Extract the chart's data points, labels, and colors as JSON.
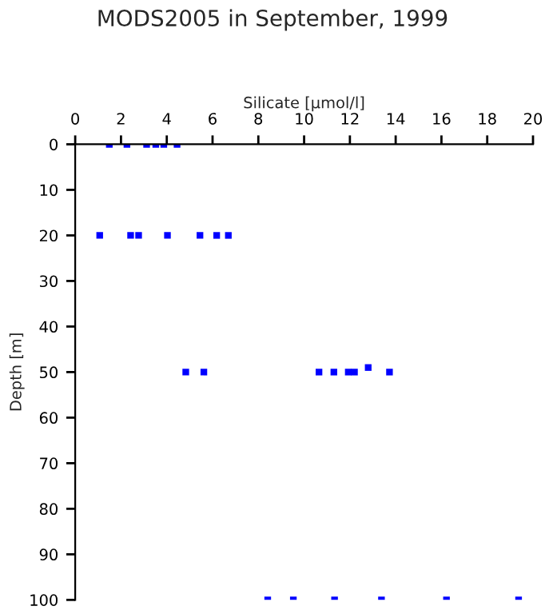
{
  "chart_data": {
    "type": "scatter",
    "title": "MODS2005 in September, 1999",
    "xlabel": "Silicate [µmol/l]",
    "ylabel": "Depth [m]",
    "series": [
      {
        "color": "#0000ff",
        "x": [
          1.49,
          2.26,
          3.12,
          3.52,
          3.87,
          4.45,
          1.07,
          2.42,
          2.77,
          4.03,
          5.45,
          6.18,
          6.69,
          4.83,
          5.62,
          10.65,
          11.3,
          11.93,
          12.2,
          12.8,
          13.73,
          8.41,
          9.53,
          11.33,
          13.38,
          16.22,
          19.37
        ],
        "values": [
          0,
          0,
          0,
          0,
          0,
          0,
          20,
          20,
          20,
          20,
          20,
          20,
          20,
          50,
          50,
          50,
          50,
          50,
          50,
          49,
          50,
          100,
          100,
          100,
          100,
          100,
          100
        ]
      }
    ],
    "xlim": [
      0,
      20
    ],
    "xticks": [
      0,
      2,
      4,
      6,
      8,
      10,
      12,
      14,
      16,
      18,
      20
    ],
    "ylim": [
      100,
      0
    ],
    "yticks": [
      0,
      10,
      20,
      30,
      40,
      50,
      60,
      70,
      80,
      90,
      100
    ],
    "marker": "square",
    "grid": false,
    "legend": false
  }
}
